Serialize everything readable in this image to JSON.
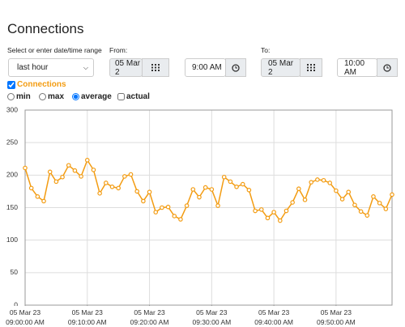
{
  "header": {
    "title": "Connections"
  },
  "range": {
    "label": "Select or enter date/time range",
    "value": "last hour"
  },
  "from": {
    "label": "From:",
    "date": "05 Mar 2",
    "time": "9:00 AM"
  },
  "to": {
    "label": "To:",
    "date": "05 Mar 2",
    "time": "10:00 AM"
  },
  "options": {
    "metric": "Connections",
    "min": "min",
    "max": "max",
    "average": "average",
    "actual": "actual"
  },
  "chart_data": {
    "type": "line",
    "color": "#f39c12",
    "grid": true,
    "ylim": [
      0,
      300
    ],
    "yticks": [
      0,
      50,
      100,
      150,
      200,
      250,
      300
    ],
    "categories": [
      "05 Mar 23\n09:00:00 AM",
      null,
      null,
      null,
      null,
      null,
      null,
      null,
      null,
      null,
      "05 Mar 23\n09:10:00 AM",
      null,
      null,
      null,
      null,
      null,
      null,
      null,
      null,
      null,
      "05 Mar 23\n09:20:00 AM",
      null,
      null,
      null,
      null,
      null,
      null,
      null,
      null,
      null,
      "05 Mar 23\n09:30:00 AM",
      null,
      null,
      null,
      null,
      null,
      null,
      null,
      null,
      null,
      "05 Mar 23\n09:40:00 AM",
      null,
      null,
      null,
      null,
      null,
      null,
      null,
      null,
      null,
      "05 Mar 23\n09:50:00 AM",
      null,
      null,
      null,
      null,
      null,
      null,
      null,
      null,
      null
    ],
    "values": [
      211,
      180,
      167,
      160,
      205,
      190,
      197,
      215,
      207,
      198,
      223,
      208,
      172,
      188,
      182,
      180,
      198,
      201,
      175,
      160,
      174,
      143,
      150,
      151,
      137,
      132,
      153,
      178,
      166,
      181,
      178,
      153,
      197,
      190,
      182,
      186,
      177,
      145,
      147,
      134,
      143,
      130,
      145,
      158,
      179,
      162,
      189,
      193,
      192,
      188,
      176,
      163,
      174,
      154,
      144,
      138,
      167,
      157,
      148,
      170
    ]
  }
}
